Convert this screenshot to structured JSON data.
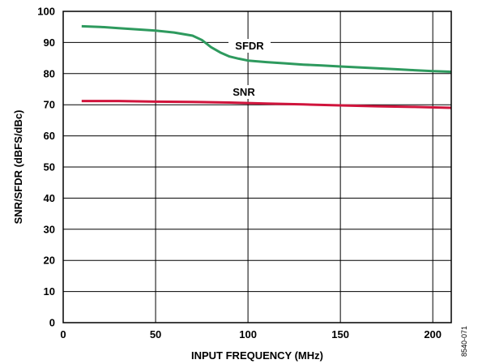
{
  "chart_data": {
    "type": "line",
    "xlabel": "INPUT FREQUENCY (MHz)",
    "ylabel": "SNR/SFDR (dBFS/dBc)",
    "xlim": [
      0,
      210
    ],
    "ylim": [
      0,
      100
    ],
    "x_ticks": [
      0,
      50,
      100,
      150,
      200
    ],
    "y_ticks": [
      0,
      10,
      20,
      30,
      40,
      50,
      60,
      70,
      80,
      90,
      100
    ],
    "grid": true,
    "series": [
      {
        "name": "SFDR",
        "color": "#2e9a5e",
        "x": [
          10,
          20,
          30,
          40,
          50,
          60,
          70,
          75,
          80,
          85,
          90,
          95,
          100,
          110,
          120,
          130,
          140,
          150,
          160,
          170,
          180,
          190,
          200,
          210
        ],
        "y": [
          95.2,
          95.0,
          94.6,
          94.2,
          93.8,
          93.2,
          92.2,
          90.8,
          88.5,
          86.8,
          85.5,
          84.8,
          84.2,
          83.7,
          83.3,
          82.9,
          82.6,
          82.3,
          82.0,
          81.7,
          81.4,
          81.1,
          80.8,
          80.6
        ]
      },
      {
        "name": "SNR",
        "color": "#d0143c",
        "x": [
          10,
          30,
          50,
          70,
          90,
          110,
          130,
          150,
          170,
          190,
          210
        ],
        "y": [
          71.2,
          71.2,
          71.0,
          70.9,
          70.7,
          70.4,
          70.1,
          69.8,
          69.5,
          69.3,
          69.0
        ]
      }
    ],
    "annotations": [
      "8540-071"
    ]
  }
}
